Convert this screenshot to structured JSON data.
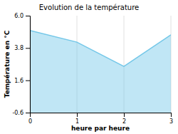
{
  "chart_data": {
    "type": "area",
    "title": "Evolution de la température",
    "x_label": "heure par heure",
    "y_label": "Température en °C",
    "x": [
      0,
      1,
      2,
      3
    ],
    "values": [
      5.0,
      4.2,
      2.55,
      4.7
    ],
    "color": "#74c7e8",
    "xlim": [
      0,
      3
    ],
    "ylim": [
      -0.6,
      6.0
    ],
    "xticks": [
      0,
      1,
      2,
      3
    ],
    "yticks": [
      -0.6,
      1.6,
      3.8,
      {
        "value": 6.0,
        "label": "6.0"
      }
    ],
    "grid": "x"
  }
}
